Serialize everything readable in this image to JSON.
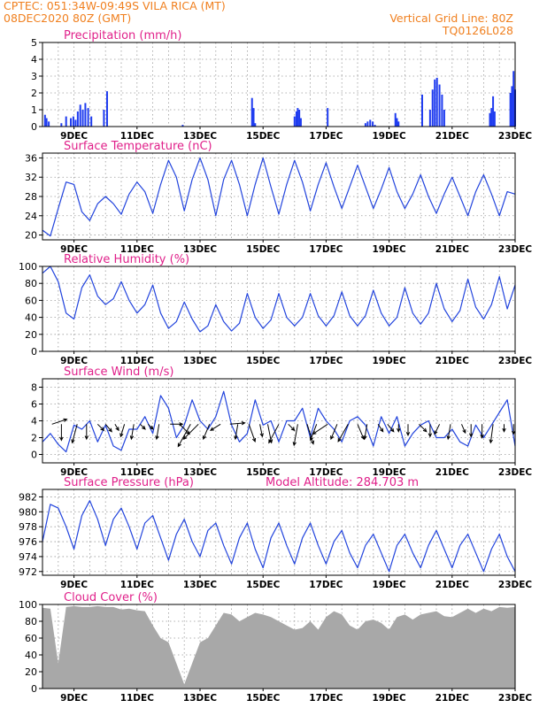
{
  "header": {
    "line1": "CPTEC:   051:34W-09:49S   VILA RICA (MT)",
    "line2": "08DEC2020 80Z (GMT)",
    "grid_note": "Vertical Grid Line: 80Z",
    "code": "TQ0126L028"
  },
  "colors": {
    "header": "#f08020",
    "title": "#e0208a",
    "series": "#2244dd",
    "bars": "#1f3cf0",
    "cloud": "#a8a8a8"
  },
  "chart_data": [
    {
      "id": "precipitation",
      "type": "bar",
      "title": "Precipitation (mm/h)",
      "ylim": [
        0,
        5
      ],
      "yticks": [
        0,
        1,
        2,
        3,
        4,
        5
      ],
      "x_tick_labels": [
        "9DEC",
        "11DEC",
        "13DEC",
        "15DEC",
        "17DEC",
        "19DEC",
        "21DEC",
        "23DEC"
      ],
      "x_tick_days": [
        9,
        11,
        13,
        15,
        17,
        19,
        21,
        23
      ],
      "x_range_days": [
        8.0,
        23.0
      ],
      "grid": true,
      "days": [
        8.08,
        8.13,
        8.2,
        8.6,
        8.75,
        8.9,
        8.98,
        9.05,
        9.12,
        9.2,
        9.28,
        9.36,
        9.45,
        9.55,
        9.95,
        10.05,
        12.45,
        14.65,
        14.7,
        14.75,
        16.0,
        16.06,
        16.1,
        16.15,
        16.2,
        17.05,
        18.25,
        18.32,
        18.4,
        18.48,
        18.55,
        19.2,
        19.25,
        19.3,
        20.05,
        20.3,
        20.38,
        20.45,
        20.52,
        20.6,
        20.68,
        20.75,
        22.2,
        22.25,
        22.3,
        22.35,
        22.85,
        22.9,
        22.95,
        23.0
      ],
      "values": [
        0.7,
        0.5,
        0.3,
        0.2,
        0.6,
        0.5,
        0.6,
        0.4,
        0.9,
        1.3,
        1.0,
        1.4,
        1.1,
        0.6,
        1.0,
        2.1,
        0.1,
        1.7,
        1.1,
        0.2,
        0.6,
        0.9,
        1.1,
        1.0,
        0.5,
        1.1,
        0.2,
        0.3,
        0.4,
        0.3,
        0.1,
        0.8,
        0.5,
        0.3,
        1.9,
        1.0,
        2.2,
        2.8,
        2.9,
        2.5,
        1.9,
        1.0,
        0.8,
        1.1,
        1.8,
        0.9,
        2.0,
        2.4,
        3.3,
        2.2
      ]
    },
    {
      "id": "temperature",
      "type": "line",
      "title": "Surface Temperature (nC)",
      "ylim": [
        19,
        37
      ],
      "yticks": [
        20,
        24,
        28,
        32,
        36
      ],
      "x_tick_labels": [
        "9DEC",
        "11DEC",
        "13DEC",
        "15DEC",
        "17DEC",
        "19DEC",
        "21DEC",
        "23DEC"
      ],
      "x_tick_days": [
        9,
        11,
        13,
        15,
        17,
        19,
        21,
        23
      ],
      "x_range_days": [
        8.0,
        23.0
      ],
      "grid": true,
      "days": [
        8.0,
        8.25,
        8.5,
        8.75,
        9.0,
        9.25,
        9.5,
        9.75,
        10.0,
        10.25,
        10.5,
        10.75,
        11.0,
        11.25,
        11.5,
        11.75,
        12.0,
        12.25,
        12.5,
        12.75,
        13.0,
        13.25,
        13.5,
        13.75,
        14.0,
        14.25,
        14.5,
        14.75,
        15.0,
        15.25,
        15.5,
        15.75,
        16.0,
        16.25,
        16.5,
        16.75,
        17.0,
        17.25,
        17.5,
        17.75,
        18.0,
        18.25,
        18.5,
        18.75,
        19.0,
        19.25,
        19.5,
        19.75,
        20.0,
        20.25,
        20.5,
        20.75,
        21.0,
        21.25,
        21.5,
        21.75,
        22.0,
        22.25,
        22.5,
        22.75,
        23.0
      ],
      "values": [
        21.0,
        19.8,
        25.5,
        31.0,
        30.5,
        24.8,
        23.0,
        26.5,
        28.0,
        26.5,
        24.3,
        28.5,
        31.0,
        29.0,
        24.5,
        30.5,
        35.5,
        32.0,
        25.0,
        31.5,
        36.0,
        31.5,
        24.0,
        31.5,
        35.5,
        30.5,
        24.0,
        30.5,
        36.0,
        30.0,
        24.3,
        30.5,
        35.5,
        31.0,
        25.0,
        30.5,
        35.0,
        30.0,
        25.5,
        30.0,
        34.5,
        30.0,
        25.5,
        29.5,
        34.0,
        29.0,
        25.5,
        28.5,
        32.5,
        28.0,
        24.5,
        28.5,
        32.0,
        28.0,
        24.0,
        29.0,
        32.5,
        28.5,
        24.0,
        29.0,
        28.5
      ]
    },
    {
      "id": "humidity",
      "type": "line",
      "title": "Relative Humidity (%)",
      "ylim": [
        0,
        100
      ],
      "yticks": [
        0,
        20,
        40,
        60,
        80,
        100
      ],
      "x_tick_labels": [
        "9DEC",
        "11DEC",
        "13DEC",
        "15DEC",
        "17DEC",
        "19DEC",
        "21DEC",
        "23DEC"
      ],
      "x_tick_days": [
        9,
        11,
        13,
        15,
        17,
        19,
        21,
        23
      ],
      "x_range_days": [
        8.0,
        23.0
      ],
      "grid": true,
      "days": [
        8.0,
        8.25,
        8.5,
        8.75,
        9.0,
        9.25,
        9.5,
        9.75,
        10.0,
        10.25,
        10.5,
        10.75,
        11.0,
        11.25,
        11.5,
        11.75,
        12.0,
        12.25,
        12.5,
        12.75,
        13.0,
        13.25,
        13.5,
        13.75,
        14.0,
        14.25,
        14.5,
        14.75,
        15.0,
        15.25,
        15.5,
        15.75,
        16.0,
        16.25,
        16.5,
        16.75,
        17.0,
        17.25,
        17.5,
        17.75,
        18.0,
        18.25,
        18.5,
        18.75,
        19.0,
        19.25,
        19.5,
        19.75,
        20.0,
        20.25,
        20.5,
        20.75,
        21.0,
        21.25,
        21.5,
        21.75,
        22.0,
        22.25,
        22.5,
        22.75,
        23.0
      ],
      "values": [
        92.0,
        100.0,
        82.0,
        45.0,
        38.0,
        75.0,
        90.0,
        65.0,
        55.0,
        62.0,
        82.0,
        60.0,
        45.0,
        55.0,
        78.0,
        45.0,
        27.0,
        35.0,
        58.0,
        38.0,
        23.0,
        30.0,
        55.0,
        35.0,
        24.0,
        33.0,
        68.0,
        40.0,
        27.0,
        37.0,
        68.0,
        40.0,
        30.0,
        40.0,
        68.0,
        42.0,
        30.0,
        42.0,
        70.0,
        42.0,
        30.0,
        42.0,
        72.0,
        45.0,
        30.0,
        40.0,
        75.0,
        45.0,
        32.0,
        45.0,
        80.0,
        50.0,
        35.0,
        48.0,
        85.0,
        52.0,
        38.0,
        55.0,
        88.0,
        50.0,
        78.0
      ]
    },
    {
      "id": "wind",
      "type": "line",
      "title": "Surface Wind (m/s)",
      "ylim": [
        -1,
        9
      ],
      "yticks": [
        0,
        2,
        4,
        6,
        8
      ],
      "x_tick_labels": [
        "9DEC",
        "11DEC",
        "13DEC",
        "15DEC",
        "17DEC",
        "19DEC",
        "21DEC",
        "23DEC"
      ],
      "x_tick_days": [
        9,
        11,
        13,
        15,
        17,
        19,
        21,
        23
      ],
      "x_range_days": [
        8.0,
        23.0
      ],
      "grid": true,
      "days": [
        8.0,
        8.25,
        8.5,
        8.75,
        9.0,
        9.25,
        9.5,
        9.75,
        10.0,
        10.25,
        10.5,
        10.75,
        11.0,
        11.25,
        11.5,
        11.75,
        12.0,
        12.25,
        12.5,
        12.75,
        13.0,
        13.25,
        13.5,
        13.75,
        14.0,
        14.25,
        14.5,
        14.75,
        15.0,
        15.25,
        15.5,
        15.75,
        16.0,
        16.25,
        16.5,
        16.75,
        17.0,
        17.25,
        17.5,
        17.75,
        18.0,
        18.25,
        18.5,
        18.75,
        19.0,
        19.25,
        19.5,
        19.75,
        20.0,
        20.25,
        20.5,
        20.75,
        21.0,
        21.25,
        21.5,
        21.75,
        22.0,
        22.25,
        22.5,
        22.75,
        23.0
      ],
      "values": [
        1.5,
        2.5,
        1.2,
        0.3,
        3.5,
        3.0,
        4.0,
        1.5,
        3.5,
        1.0,
        0.5,
        3.0,
        3.0,
        4.5,
        2.5,
        7.0,
        5.5,
        2.0,
        3.5,
        6.5,
        4.0,
        3.0,
        4.5,
        7.5,
        3.5,
        1.5,
        2.5,
        6.5,
        3.5,
        4.0,
        1.5,
        4.0,
        4.0,
        5.5,
        2.0,
        5.5,
        4.0,
        3.0,
        1.5,
        4.0,
        4.5,
        3.5,
        1.0,
        4.5,
        2.5,
        4.5,
        1.0,
        2.5,
        3.5,
        4.0,
        2.0,
        2.0,
        3.0,
        1.5,
        1.0,
        3.5,
        2.0,
        3.5,
        5.0,
        6.5,
        1.0
      ],
      "wind_barbs": {
        "days": [
          8.3,
          8.6,
          9.1,
          9.4,
          9.75,
          10.0,
          10.3,
          10.6,
          10.9,
          11.1,
          11.35,
          11.7,
          12.05,
          12.35,
          12.7,
          12.95,
          13.3,
          13.65,
          13.95,
          14.2,
          14.55,
          14.9,
          15.15,
          15.5,
          15.8,
          16.1,
          16.4,
          16.7,
          17.05,
          17.35,
          17.7,
          18.0,
          18.3,
          18.65,
          18.95,
          19.3,
          19.6,
          19.95,
          20.3,
          20.6,
          20.95,
          21.3,
          21.6,
          21.95,
          22.3,
          22.65,
          22.95
        ],
        "u": [
          1.2,
          0.0,
          -0.4,
          0.0,
          0.5,
          0.5,
          0.3,
          -0.3,
          -0.2,
          0.4,
          0.4,
          -0.2,
          1.0,
          0.8,
          -1.0,
          -1.2,
          -0.5,
          -0.8,
          1.2,
          -0.2,
          0.5,
          0.2,
          0.3,
          -0.8,
          0.5,
          -0.3,
          0.5,
          -0.5,
          -1.2,
          -0.5,
          -0.8,
          0.5,
          -0.2,
          0.4,
          0.5,
          0.0,
          0.0,
          0.6,
          0.0,
          -0.4,
          -0.2,
          0.3,
          0.0,
          0.0,
          -0.2,
          0.0,
          0.0
        ],
        "v": [
          0.4,
          -1.3,
          -1.5,
          -1.2,
          -0.5,
          -0.6,
          -0.5,
          -1.0,
          -1.2,
          -0.4,
          -0.4,
          -1.2,
          0.0,
          -0.8,
          -1.8,
          -1.2,
          -1.2,
          -0.5,
          0.1,
          -1.2,
          -1.4,
          -1.0,
          -1.5,
          -1.5,
          -0.5,
          -1.7,
          -1.6,
          -1.3,
          -0.8,
          -1.2,
          -1.4,
          -1.2,
          -1.2,
          -0.6,
          -0.6,
          -0.6,
          -0.9,
          -0.6,
          -1.0,
          -0.8,
          -1.2,
          -0.7,
          -1.0,
          -1.1,
          -1.5,
          -0.6,
          -0.8
        ]
      }
    },
    {
      "id": "pressure",
      "type": "line",
      "title": "Surface Pressure (hPa)",
      "annotation": "Model Altitude: 284.703 m",
      "ylim": [
        971.5,
        983
      ],
      "yticks": [
        972,
        974,
        976,
        978,
        980,
        982
      ],
      "x_tick_labels": [
        "9DEC",
        "11DEC",
        "13DEC",
        "15DEC",
        "17DEC",
        "19DEC",
        "21DEC",
        "23DEC"
      ],
      "x_tick_days": [
        9,
        11,
        13,
        15,
        17,
        19,
        21,
        23
      ],
      "x_range_days": [
        8.0,
        23.0
      ],
      "grid": true,
      "days": [
        8.0,
        8.25,
        8.5,
        8.75,
        9.0,
        9.25,
        9.5,
        9.75,
        10.0,
        10.25,
        10.5,
        10.75,
        11.0,
        11.25,
        11.5,
        11.75,
        12.0,
        12.25,
        12.5,
        12.75,
        13.0,
        13.25,
        13.5,
        13.75,
        14.0,
        14.25,
        14.5,
        14.75,
        15.0,
        15.25,
        15.5,
        15.75,
        16.0,
        16.25,
        16.5,
        16.75,
        17.0,
        17.25,
        17.5,
        17.75,
        18.0,
        18.25,
        18.5,
        18.75,
        19.0,
        19.25,
        19.5,
        19.75,
        20.0,
        20.25,
        20.5,
        20.75,
        21.0,
        21.25,
        21.5,
        21.75,
        22.0,
        22.25,
        22.5,
        22.75,
        23.0
      ],
      "values": [
        976.0,
        981.0,
        980.5,
        978.0,
        975.0,
        979.5,
        981.5,
        979.0,
        975.5,
        979.0,
        980.5,
        978.0,
        975.0,
        978.5,
        979.5,
        976.5,
        973.5,
        977.0,
        979.0,
        976.0,
        974.0,
        977.5,
        978.5,
        975.5,
        973.0,
        976.5,
        978.5,
        975.0,
        972.5,
        976.5,
        978.5,
        975.5,
        973.0,
        976.5,
        978.5,
        975.5,
        973.0,
        976.0,
        977.5,
        974.5,
        972.5,
        975.5,
        977.0,
        974.5,
        972.0,
        975.5,
        977.0,
        974.5,
        972.5,
        975.5,
        977.5,
        975.0,
        972.5,
        975.5,
        977.0,
        974.5,
        972.0,
        975.0,
        977.0,
        974.0,
        972.0
      ]
    },
    {
      "id": "cloud_cover",
      "type": "area",
      "title": "Cloud Cover (%)",
      "ylim": [
        0,
        100
      ],
      "yticks": [
        0,
        20,
        40,
        60,
        80,
        100
      ],
      "x_tick_labels": [
        "9DEC",
        "11DEC",
        "13DEC",
        "15DEC",
        "17DEC",
        "19DEC",
        "21DEC",
        "23DEC"
      ],
      "x_tick_days": [
        9,
        11,
        13,
        15,
        17,
        19,
        21,
        23
      ],
      "x_range_days": [
        8.0,
        23.0
      ],
      "grid": true,
      "days": [
        8.0,
        8.25,
        8.5,
        8.75,
        9.0,
        9.25,
        9.5,
        9.75,
        10.0,
        10.25,
        10.5,
        10.75,
        11.0,
        11.25,
        11.5,
        11.75,
        12.0,
        12.25,
        12.5,
        12.75,
        13.0,
        13.25,
        13.5,
        13.75,
        14.0,
        14.25,
        14.5,
        14.75,
        15.0,
        15.25,
        15.5,
        15.75,
        16.0,
        16.25,
        16.5,
        16.75,
        17.0,
        17.25,
        17.5,
        17.75,
        18.0,
        18.25,
        18.5,
        18.75,
        19.0,
        19.25,
        19.5,
        19.75,
        20.0,
        20.25,
        20.5,
        20.75,
        21.0,
        21.25,
        21.5,
        21.75,
        22.0,
        22.25,
        22.5,
        22.75,
        23.0
      ],
      "values": [
        96.0,
        95.0,
        30.0,
        97.0,
        98.0,
        97.0,
        97.0,
        98.0,
        97.0,
        97.0,
        94.0,
        95.0,
        93.0,
        92.0,
        75.0,
        60.0,
        55.0,
        30.0,
        5.0,
        30.0,
        55.0,
        60.0,
        75.0,
        90.0,
        88.0,
        80.0,
        85.0,
        90.0,
        88.0,
        85.0,
        80.0,
        75.0,
        70.0,
        72.0,
        80.0,
        70.0,
        85.0,
        92.0,
        88.0,
        75.0,
        70.0,
        80.0,
        82.0,
        78.0,
        70.0,
        85.0,
        88.0,
        82.0,
        88.0,
        90.0,
        92.0,
        86.0,
        85.0,
        90.0,
        95.0,
        90.0,
        95.0,
        92.0,
        97.0,
        96.0,
        97.0
      ]
    }
  ]
}
